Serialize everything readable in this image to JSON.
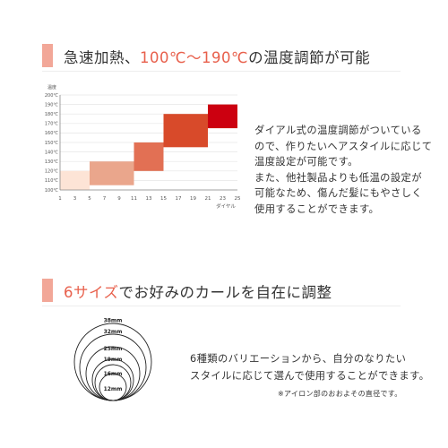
{
  "colors": {
    "accent": "#e8604c",
    "header_bar": "#f2a798",
    "band_colors": [
      "#fde4d6",
      "#eaa68c",
      "#e27054",
      "#d84a2a",
      "#cc0010"
    ]
  },
  "section1": {
    "title_prefix": "急速加熱、",
    "title_accent": "100℃〜190℃",
    "title_suffix": "の温度調節が可能",
    "description_lines": [
      "ダイアル式の温度調節がついている",
      "ので、作りたいヘアスタイルに応じて",
      "温度設定が可能です。",
      "また、他社製品よりも低温の設定が",
      "可能なため、傷んだ髪にもやさしく",
      "使用することができます。"
    ]
  },
  "chart_data": {
    "type": "bar",
    "ylabel": "温度",
    "xlabel": "ダイヤル",
    "x_ticks": [
      1,
      3,
      5,
      7,
      9,
      11,
      13,
      15,
      17,
      19,
      21,
      23,
      25
    ],
    "y_ticks": [
      "100℃",
      "110℃",
      "120℃",
      "130℃",
      "140℃",
      "150℃",
      "160℃",
      "170℃",
      "180℃",
      "190℃",
      "200℃"
    ],
    "xlim": [
      1,
      25
    ],
    "ylim": [
      100,
      200
    ],
    "grid": true,
    "bands": [
      {
        "dial_range": [
          1,
          5
        ],
        "temp_range": [
          100,
          120
        ]
      },
      {
        "dial_range": [
          5,
          11
        ],
        "temp_range": [
          105,
          130
        ]
      },
      {
        "dial_range": [
          11,
          15
        ],
        "temp_range": [
          120,
          150
        ]
      },
      {
        "dial_range": [
          15,
          21
        ],
        "temp_range": [
          145,
          180
        ]
      },
      {
        "dial_range": [
          21,
          25
        ],
        "temp_range": [
          165,
          190
        ]
      }
    ]
  },
  "section2": {
    "title_accent": "6サイズ",
    "title_suffix": "でお好みのカールを自在に調整",
    "sizes": [
      "38mm",
      "32mm",
      "25mm",
      "19mm",
      "16mm",
      "12mm"
    ],
    "description_lines": [
      "6種類のバリエーションから、自分のなりたい",
      "スタイルに応じて選んで使用することができます。"
    ],
    "note": "※アイロン部のおおよその直径です。"
  }
}
